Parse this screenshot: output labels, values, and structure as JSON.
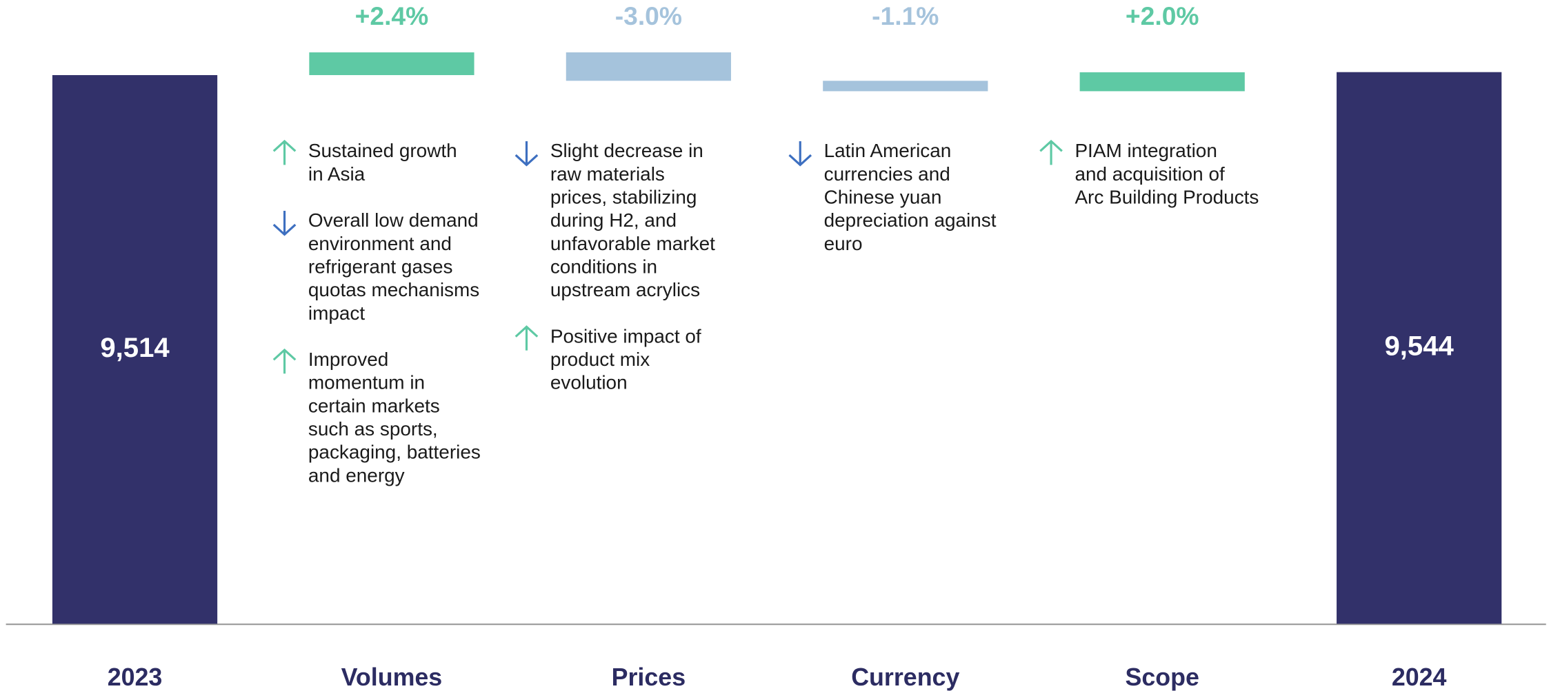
{
  "chart_data": {
    "type": "waterfall",
    "categories": [
      "2023",
      "Volumes",
      "Prices",
      "Currency",
      "Scope",
      "2024"
    ],
    "values": [
      9514,
      2.4,
      -3.0,
      -1.1,
      2.0,
      9544
    ],
    "value_labels": [
      "9,514",
      "+2.4%",
      "-3.0%",
      "-1.1%",
      "+2.0%",
      "9,544"
    ],
    "kinds": [
      "total",
      "change",
      "change",
      "change",
      "change",
      "total"
    ],
    "colors": {
      "total": "#32316a",
      "increase": "#5ec9a4",
      "decrease": "#a5c3dc",
      "arrow_up": "#5ec9a4",
      "arrow_down": "#3d6fc0"
    },
    "notes": [
      [],
      [
        {
          "direction": "up",
          "lines": [
            "Sustained growth",
            "in Asia"
          ]
        },
        {
          "direction": "down",
          "lines": [
            "Overall low demand",
            "environment and",
            "refrigerant gases",
            "quotas mechanisms",
            "impact"
          ]
        },
        {
          "direction": "up",
          "lines": [
            "Improved",
            "momentum in",
            "certain markets",
            "such as sports,",
            "packaging, batteries",
            "and energy"
          ]
        }
      ],
      [
        {
          "direction": "down",
          "lines": [
            "Slight decrease in",
            "raw materials",
            "prices, stabilizing",
            "during H2, and",
            "unfavorable market",
            "conditions in",
            "upstream acrylics"
          ]
        },
        {
          "direction": "up",
          "lines": [
            "Positive impact of",
            "product mix",
            "evolution"
          ]
        }
      ],
      [
        {
          "direction": "down",
          "lines": [
            "Latin American",
            "currencies and",
            "Chinese yuan",
            "depreciation against",
            "euro"
          ]
        }
      ],
      [
        {
          "direction": "up",
          "lines": [
            "PIAM integration",
            "and acquisition of",
            "Arc Building Products"
          ]
        }
      ],
      []
    ]
  }
}
